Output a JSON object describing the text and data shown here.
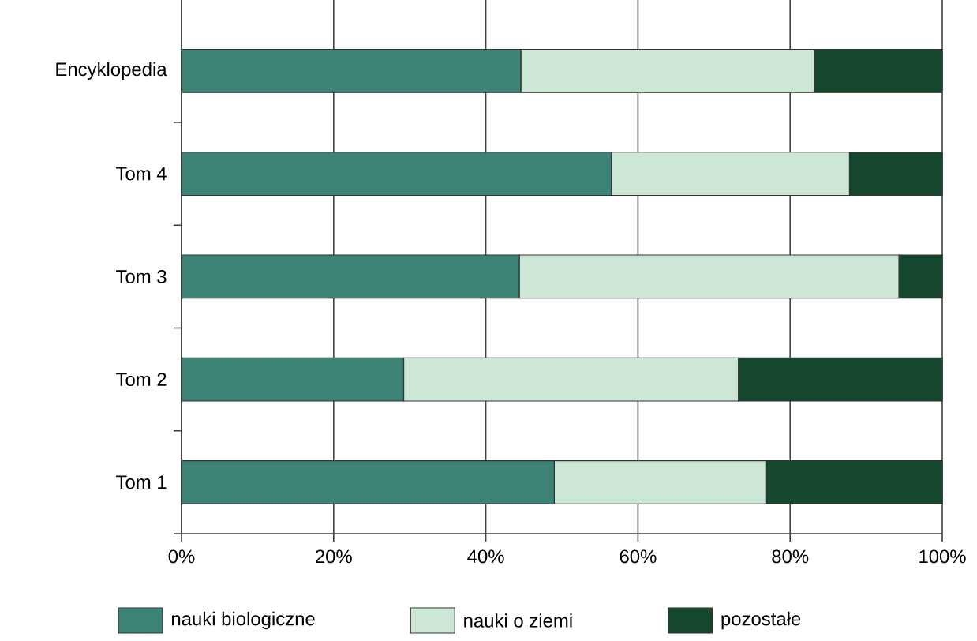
{
  "chart_data": {
    "type": "bar",
    "orientation": "horizontal",
    "stacked": true,
    "categories": [
      "Encyklopedia",
      "Tom 4",
      "Tom 3",
      "Tom 2",
      "Tom 1"
    ],
    "series": [
      {
        "name": "nauki biologiczne",
        "color": "#3c8275",
        "values": [
          44.6,
          56.5,
          44.4,
          29.2,
          49.0
        ]
      },
      {
        "name": "nauki o ziemi",
        "color": "#cde7d6",
        "values": [
          38.6,
          31.3,
          49.9,
          44.0,
          27.8
        ]
      },
      {
        "name": "pozostałe",
        "color": "#14472e",
        "values": [
          16.8,
          12.2,
          5.7,
          26.8,
          23.2
        ]
      }
    ],
    "xlim": [
      0,
      100
    ],
    "xticks": [
      {
        "value": 0,
        "label": "0%"
      },
      {
        "value": 20,
        "label": "20%"
      },
      {
        "value": 40,
        "label": "40%"
      },
      {
        "value": 60,
        "label": "60%"
      },
      {
        "value": 80,
        "label": "80%"
      },
      {
        "value": 100,
        "label": "100%"
      }
    ],
    "grid": "x",
    "legend": "bottom"
  }
}
